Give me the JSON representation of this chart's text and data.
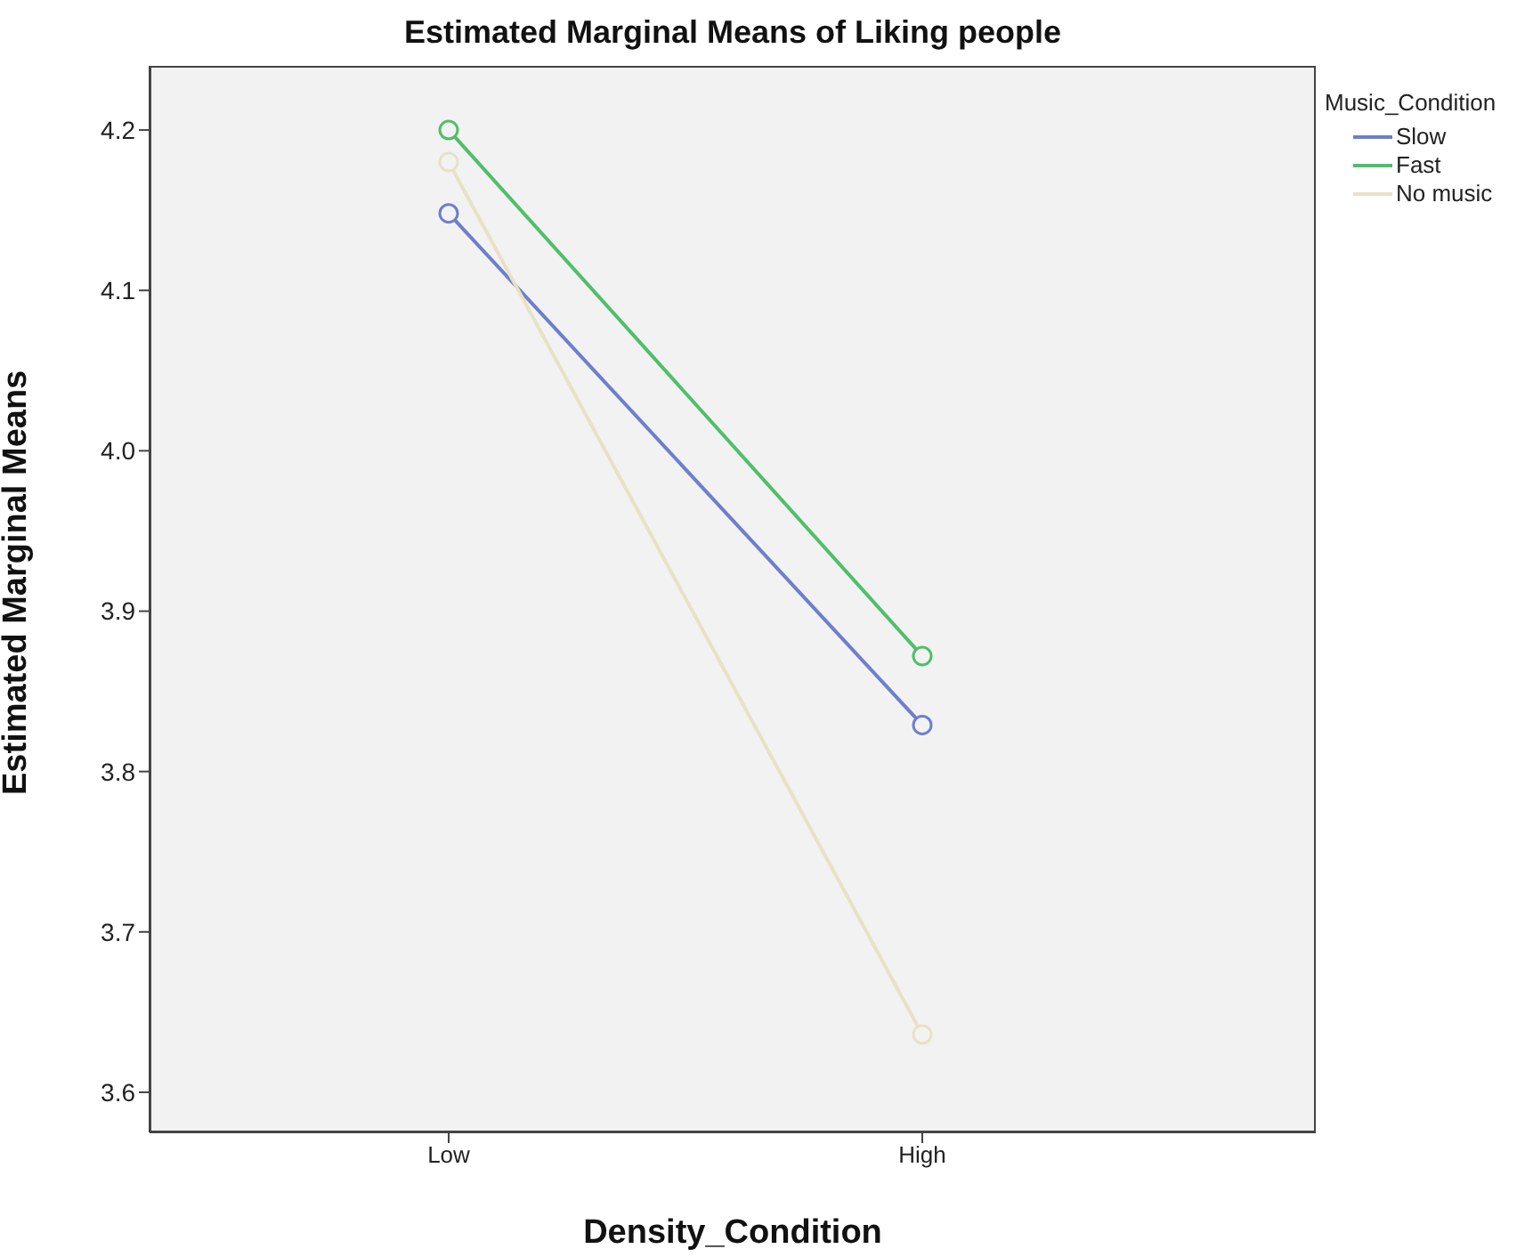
{
  "chart_data": {
    "type": "line",
    "title": "Estimated Marginal Means of Liking people",
    "xlabel": "Density_Condition",
    "ylabel": "Estimated Marginal Means",
    "legend_title": "Music_Condition",
    "categories": [
      "Low",
      "High"
    ],
    "series": [
      {
        "name": "Slow",
        "color": "#6d7fcc",
        "values": [
          4.148,
          3.829
        ]
      },
      {
        "name": "Fast",
        "color": "#4fbf6a",
        "values": [
          4.2,
          3.872
        ]
      },
      {
        "name": "No music",
        "color": "#e6e2c4",
        "values": [
          4.18,
          3.636
        ]
      }
    ],
    "ylim": [
      3.575,
      4.24
    ],
    "yticks": [
      3.6,
      3.7,
      3.8,
      3.9,
      {
        "value": 4.0,
        "label": "4.0"
      },
      4.1,
      4.2
    ],
    "grid": false,
    "legend": "top right",
    "marker": "circle",
    "line_style": "solid"
  }
}
